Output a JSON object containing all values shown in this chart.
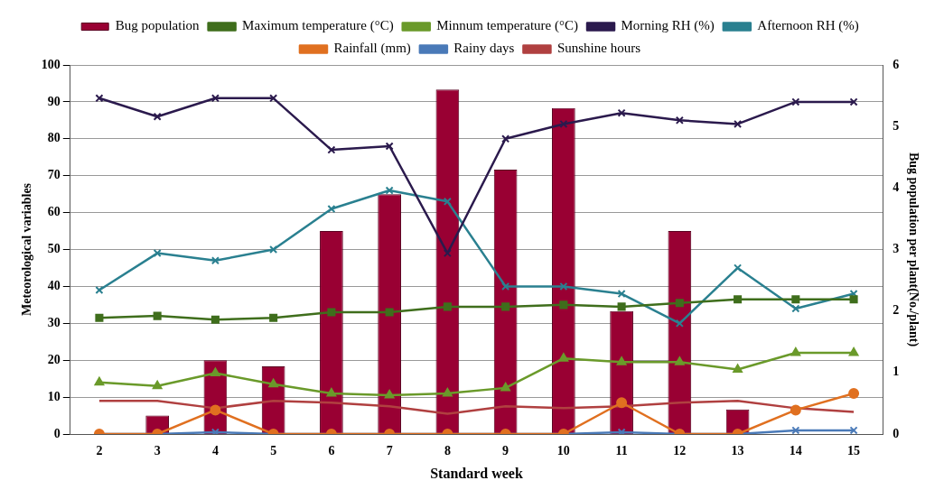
{
  "chart_data": {
    "type": "line",
    "xlabel": "Standard week",
    "ylabel": "Meteorological variables",
    "y2label": "Bug population per plant(No./plant)",
    "categories": [
      "2",
      "3",
      "4",
      "5",
      "6",
      "7",
      "8",
      "9",
      "10",
      "11",
      "12",
      "13",
      "14",
      "15"
    ],
    "ylim": [
      0,
      100
    ],
    "yticks": [
      0,
      10,
      20,
      30,
      40,
      50,
      60,
      70,
      80,
      90,
      100
    ],
    "y2lim": [
      0,
      6
    ],
    "y2ticks": [
      0,
      1,
      2,
      3,
      4,
      5,
      6
    ],
    "grid": "y",
    "legend": "top",
    "series": [
      {
        "name": "Bug population",
        "type": "bar",
        "axis": "y2",
        "color": "#990033",
        "values": [
          0,
          0.3,
          1.2,
          1.1,
          3.3,
          3.9,
          5.6,
          4.3,
          5.3,
          2.0,
          3.3,
          0.4,
          0,
          0
        ]
      },
      {
        "name": "Maximum temperature (°C)",
        "marker": "square",
        "color": "#3f6e1c",
        "values": [
          31.5,
          32,
          31,
          31.5,
          33,
          33,
          34.5,
          34.5,
          35,
          34.5,
          35.5,
          36.5,
          36.5,
          36.5
        ]
      },
      {
        "name": "Minnum temperature (°C)",
        "marker": "triangle",
        "color": "#6a9a2a",
        "values": [
          14,
          13,
          16.5,
          13.5,
          11,
          10.5,
          11,
          12.5,
          20.5,
          19.5,
          19.5,
          17.5,
          22,
          22
        ]
      },
      {
        "name": "Morning RH (%)",
        "marker": "cross",
        "color": "#2b1a4d",
        "values": [
          91,
          86,
          91,
          91,
          77,
          78,
          49,
          80,
          84,
          87,
          85,
          84,
          90,
          90
        ]
      },
      {
        "name": "Afternoon RH (%)",
        "marker": "cross",
        "color": "#2a8090",
        "values": [
          39,
          49,
          47,
          50,
          61,
          66,
          63,
          40,
          40,
          38,
          30,
          45,
          34,
          38
        ]
      },
      {
        "name": "Rainfall (mm)",
        "marker": "circle",
        "color": "#e07020",
        "values": [
          0,
          0,
          6.5,
          0,
          0,
          0,
          0,
          0,
          0,
          8.5,
          0,
          0,
          6.5,
          11
        ]
      },
      {
        "name": "Rainy days",
        "marker": "cross",
        "color": "#4a7ab8",
        "values": [
          0,
          0,
          0.5,
          0,
          0,
          0,
          0,
          0,
          0,
          0.5,
          0,
          0,
          1,
          1
        ]
      },
      {
        "name": "Sunshine hours",
        "marker": "none",
        "color": "#b04040",
        "values": [
          9,
          9,
          7,
          9,
          8.5,
          7.5,
          5.5,
          7.5,
          7,
          7.5,
          8.5,
          9,
          7,
          6
        ]
      }
    ]
  }
}
